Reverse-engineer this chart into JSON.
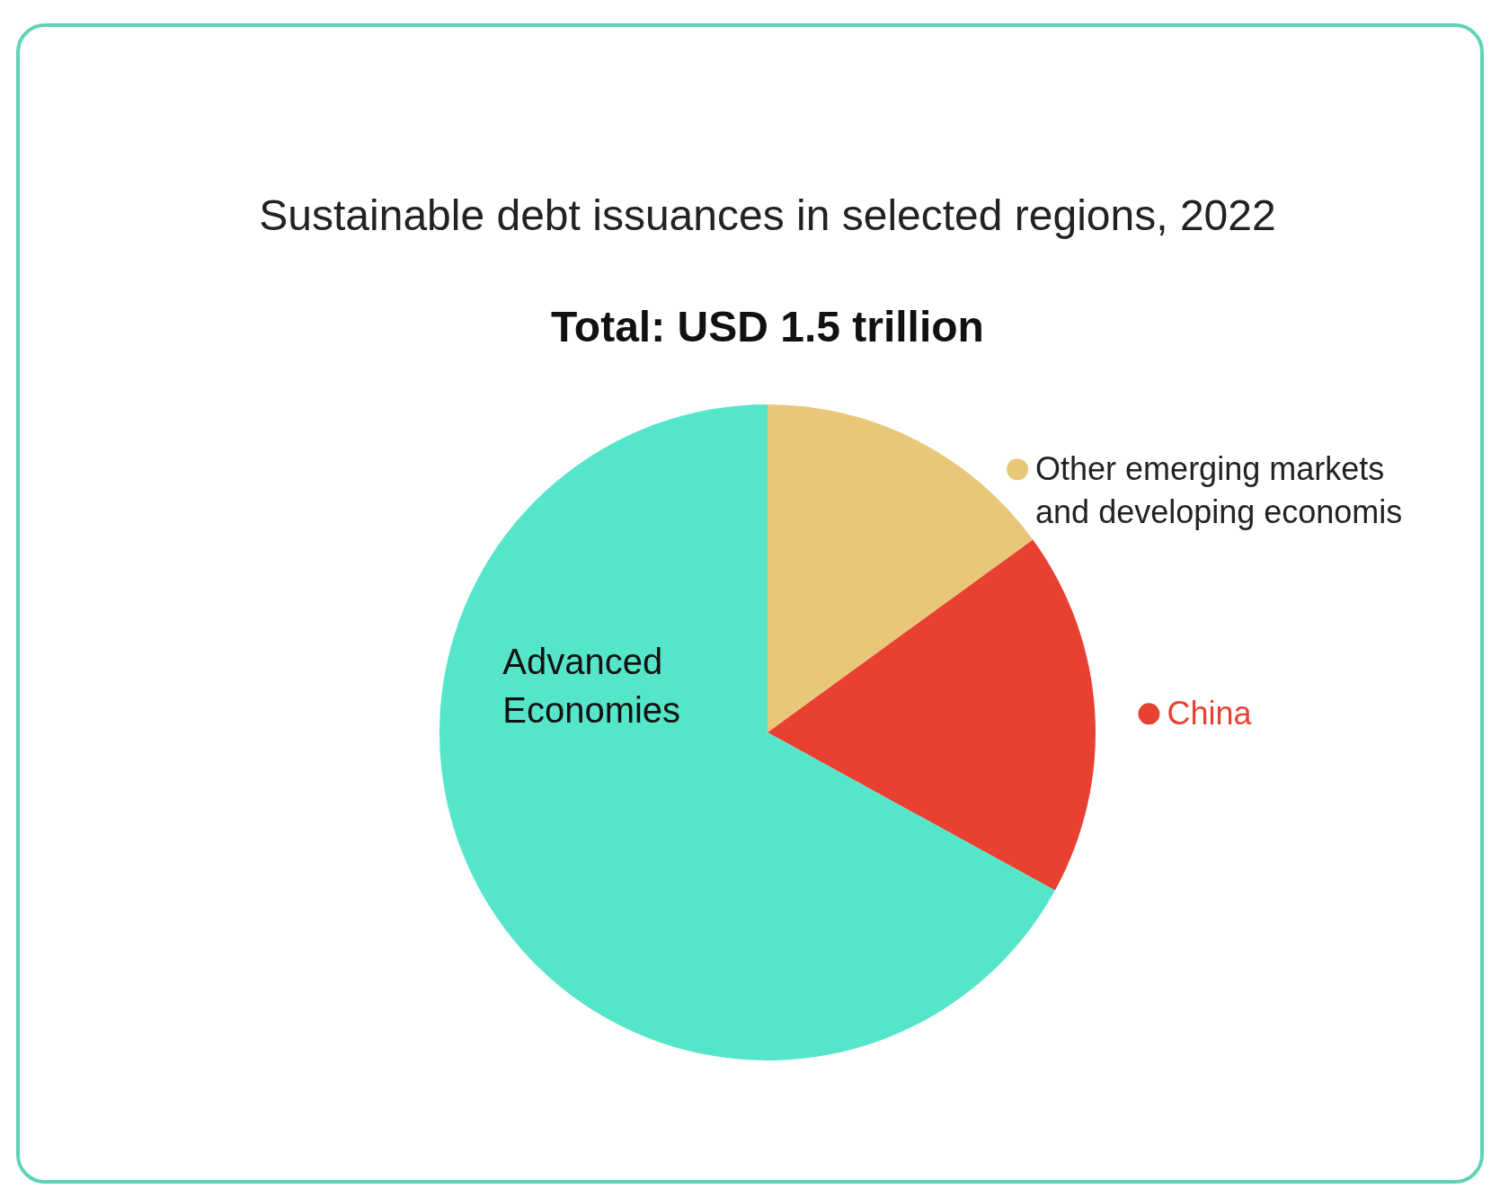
{
  "chart_data": {
    "type": "pie",
    "title": "Sustainable debt issuances in selected regions, 2022",
    "subtitle": "Total: USD 1.5 trillion",
    "categories": [
      "Other emerging markets and developing economis",
      "China",
      "Advanced Economies"
    ],
    "values": [
      15,
      18,
      67
    ],
    "colors": [
      "#e8c778",
      "#e84132",
      "#55e6c9"
    ],
    "legend": "right"
  }
}
